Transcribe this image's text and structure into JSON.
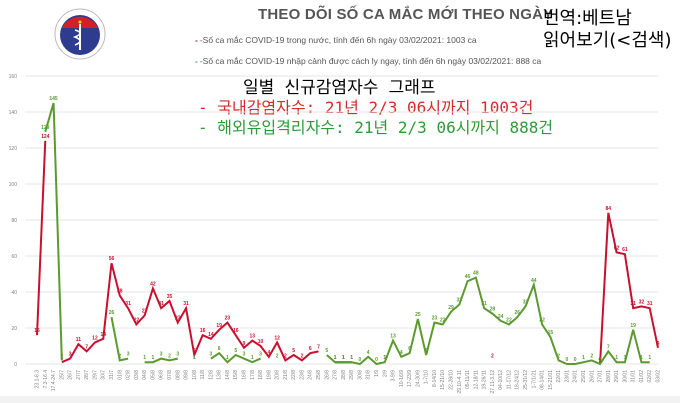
{
  "header": {
    "title": "THEO DÕI SỐ CA MẮC MỚI THEO NGÀY",
    "legend_domestic": "-Số ca mắc COVID-19 trong nước, tính đến 6h ngày 03/02/2021: 1003 ca",
    "legend_imported": "-Số ca mắc COVID-19 nhập cảnh được cách ly ngay, tính đến 6h ngày 03/02/2021: 888 ca",
    "logo_text": "BỘ Y TẾ"
  },
  "overlay": {
    "note_line1": "번역:베트남",
    "note_line2": "읽어보기(<검색)",
    "kr_title": "일별 신규감염자수 그래프",
    "kr_domestic": "- 국내감염자수: 21년 2/3 06시까지 1003건",
    "kr_imported": "- 해외유입격리자수: 21년 2/3 06시까지 888건"
  },
  "colors": {
    "domestic": "#c8102e",
    "imported": "#5b9a2f",
    "grid": "#e6e6e6",
    "axis_text": "#7f7f7f"
  },
  "chart_data": {
    "type": "line",
    "title": "THEO DÕI SỐ CA MẮC MỚI THEO NGÀY",
    "xlabel": "",
    "ylabel": "",
    "ylim": [
      0,
      160
    ],
    "yticks": [
      0,
      20,
      40,
      60,
      80,
      100,
      120,
      140,
      160
    ],
    "grid": true,
    "legend_position": "top",
    "categories": [
      "23.1-6.3",
      "7.3-16.4",
      "17.4-24.7",
      "25/7",
      "26/7",
      "27/7",
      "28/7",
      "29/7",
      "30/7",
      "31/7",
      "01/8",
      "02/8",
      "03/8",
      "04/8",
      "05/8",
      "06/8",
      "07/8",
      "08/8",
      "09/8",
      "10/8",
      "11/8",
      "12/8",
      "13/8",
      "14/8",
      "15/8",
      "16/8",
      "17/8",
      "18/8",
      "19/8",
      "20/8",
      "21/8",
      "22/8",
      "23/8",
      "24/8",
      "25/8",
      "26/8",
      "27/8",
      "28/8",
      "29/8",
      "30/8",
      "31/8",
      "1/9",
      "2/9",
      "3-9/9",
      "10-16/9",
      "17-23/9",
      "24-30/9",
      "1-7/10",
      "8-14/10",
      "15-21/10",
      "22-28/10",
      "29.10-4.11",
      "05-11/11",
      "12-18/11",
      "19-26/11",
      "27.11-3.12",
      "04-10/12",
      "11-17/12",
      "18-24/12",
      "25-31/12",
      "1-7/1/21",
      "08-14/01",
      "15-21/01",
      "22/01",
      "23/01",
      "24/01",
      "25/01",
      "26/01",
      "27/01",
      "28/01",
      "29/01",
      "30/01",
      "31/01",
      "01/02",
      "02/02",
      "03/02"
    ],
    "series": [
      {
        "name": "Số ca mắc COVID-19 trong nước",
        "color": "#c8102e",
        "values": [
          16,
          124,
          null,
          1,
          3,
          11,
          7,
          12,
          14,
          56,
          38,
          31,
          22,
          27,
          42,
          31,
          35,
          23,
          31,
          5,
          16,
          14,
          19,
          23,
          16,
          9,
          13,
          10,
          4,
          12,
          2,
          5,
          2,
          6,
          7,
          null,
          1,
          1,
          1,
          null,
          null,
          null,
          1,
          null,
          null,
          null,
          null,
          null,
          null,
          null,
          null,
          null,
          null,
          null,
          null,
          2,
          null,
          null,
          null,
          null,
          null,
          null,
          null,
          null,
          null,
          null,
          null,
          null,
          0,
          84,
          62,
          61,
          31,
          32,
          31,
          9
        ]
      },
      {
        "name": "Số ca mắc COVID-19 nhập cảnh được cách ly ngay",
        "color": "#5b9a2f",
        "values": [
          null,
          129,
          145,
          2,
          null,
          null,
          null,
          null,
          null,
          26,
          2,
          3,
          null,
          1,
          1,
          3,
          2,
          3,
          null,
          1,
          null,
          3,
          6,
          1,
          5,
          3,
          1,
          3,
          null,
          2,
          null,
          null,
          null,
          null,
          null,
          5,
          1,
          1,
          1,
          0,
          4,
          0,
          1,
          13,
          4,
          6,
          25,
          5,
          23,
          22,
          29,
          33,
          46,
          48,
          31,
          28,
          24,
          22,
          26,
          32,
          44,
          22,
          15,
          2,
          0,
          0,
          1,
          2,
          0,
          7,
          1,
          1,
          19,
          1,
          1,
          null
        ]
      }
    ]
  }
}
